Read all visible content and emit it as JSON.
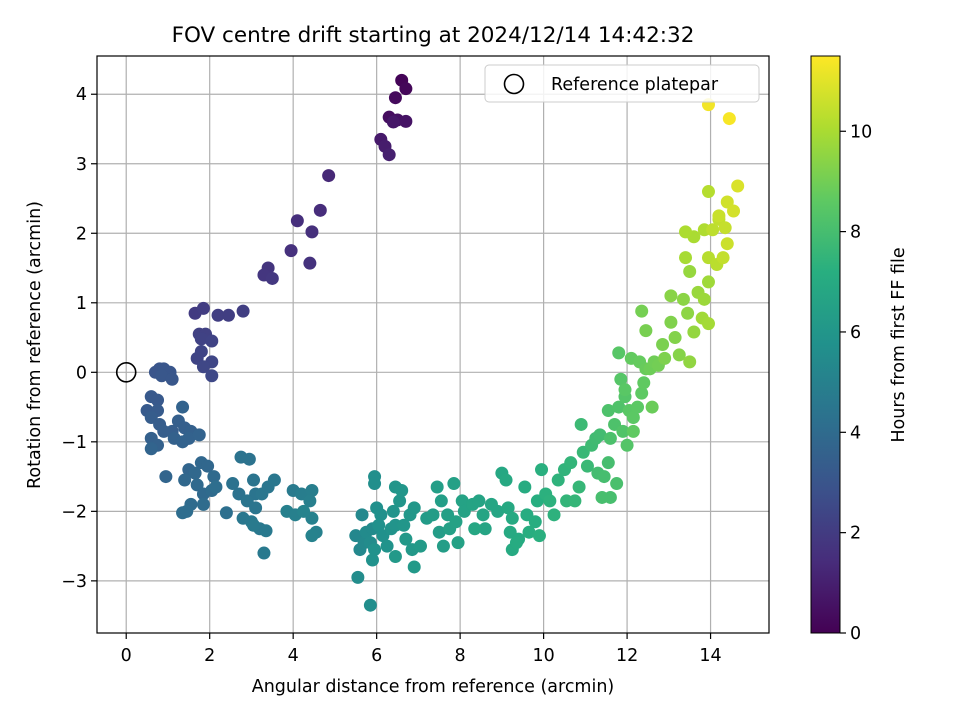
{
  "chart_data": {
    "type": "scatter",
    "title": "FOV centre drift starting at 2024/12/14 14:42:32",
    "xlabel": "Angular distance from reference (arcmin)",
    "ylabel": "Rotation from reference (arcmin)",
    "xlim": [
      -0.7,
      15.4
    ],
    "ylim": [
      -3.75,
      4.55
    ],
    "xticks": [
      0,
      2,
      4,
      6,
      8,
      10,
      12,
      14
    ],
    "yticks": [
      -3,
      -2,
      -1,
      0,
      1,
      2,
      3,
      4
    ],
    "grid": true,
    "legend": {
      "position": "top-right",
      "entries": [
        "Reference platepar"
      ]
    },
    "reference_point": {
      "x": 0,
      "y": 0,
      "label": "Reference platepar"
    },
    "colorbar": {
      "label": "Hours from first FF file",
      "range": [
        0,
        11.5
      ],
      "ticks": [
        0,
        2,
        4,
        6,
        8,
        10
      ],
      "colormap": "viridis"
    },
    "points": [
      [
        6.6,
        4.2,
        0.1
      ],
      [
        6.7,
        4.08,
        0.2
      ],
      [
        6.45,
        3.95,
        0.3
      ],
      [
        6.3,
        3.67,
        0.4
      ],
      [
        6.5,
        3.63,
        0.5
      ],
      [
        6.7,
        3.61,
        0.6
      ],
      [
        6.4,
        3.6,
        0.7
      ],
      [
        6.1,
        3.35,
        0.8
      ],
      [
        6.2,
        3.25,
        0.9
      ],
      [
        6.3,
        3.13,
        1.0
      ],
      [
        4.85,
        2.83,
        1.3
      ],
      [
        4.1,
        2.18,
        1.5
      ],
      [
        4.65,
        2.33,
        1.45
      ],
      [
        4.45,
        2.02,
        1.55
      ],
      [
        3.95,
        1.75,
        1.6
      ],
      [
        4.4,
        1.57,
        1.65
      ],
      [
        3.4,
        1.5,
        1.75
      ],
      [
        3.3,
        1.4,
        1.8
      ],
      [
        3.5,
        1.35,
        1.85
      ],
      [
        1.65,
        0.85,
        2.0
      ],
      [
        1.85,
        0.92,
        2.05
      ],
      [
        2.2,
        0.82,
        2.1
      ],
      [
        2.45,
        0.82,
        2.1
      ],
      [
        2.8,
        0.88,
        2.1
      ],
      [
        1.75,
        0.55,
        2.2
      ],
      [
        1.9,
        0.55,
        2.2
      ],
      [
        1.8,
        0.48,
        2.25
      ],
      [
        2.05,
        0.45,
        2.3
      ],
      [
        1.8,
        0.3,
        2.35
      ],
      [
        1.7,
        0.2,
        2.35
      ],
      [
        2.05,
        0.15,
        2.4
      ],
      [
        1.85,
        0.08,
        2.45
      ],
      [
        2.05,
        -0.05,
        2.5
      ],
      [
        0.8,
        0.05,
        3.0
      ],
      [
        0.7,
        0.0,
        3.0
      ],
      [
        0.9,
        0.05,
        3.05
      ],
      [
        1.05,
        0.0,
        3.05
      ],
      [
        0.85,
        -0.05,
        3.1
      ],
      [
        1.1,
        -0.1,
        3.1
      ],
      [
        0.6,
        -0.35,
        3.2
      ],
      [
        0.75,
        -0.4,
        3.2
      ],
      [
        0.5,
        -0.55,
        3.25
      ],
      [
        0.75,
        -0.55,
        3.3
      ],
      [
        0.6,
        -0.65,
        3.35
      ],
      [
        0.8,
        -0.75,
        3.35
      ],
      [
        0.9,
        -0.85,
        3.4
      ],
      [
        1.1,
        -0.85,
        3.4
      ],
      [
        1.25,
        -0.7,
        3.45
      ],
      [
        1.4,
        -0.8,
        3.45
      ],
      [
        1.55,
        -0.85,
        3.5
      ],
      [
        0.6,
        -0.95,
        3.5
      ],
      [
        0.75,
        -1.05,
        3.55
      ],
      [
        1.15,
        -0.95,
        3.55
      ],
      [
        1.35,
        -1.0,
        3.6
      ],
      [
        1.5,
        -0.95,
        3.6
      ],
      [
        1.75,
        -0.9,
        3.65
      ],
      [
        1.35,
        -0.5,
        3.65
      ],
      [
        0.6,
        -1.1,
        3.7
      ],
      [
        0.95,
        -1.5,
        3.75
      ],
      [
        1.5,
        -1.4,
        3.75
      ],
      [
        1.8,
        -1.3,
        3.8
      ],
      [
        1.95,
        -1.35,
        3.8
      ],
      [
        1.65,
        -1.45,
        3.85
      ],
      [
        1.4,
        -1.55,
        3.85
      ],
      [
        1.7,
        -1.62,
        3.9
      ],
      [
        1.85,
        -1.75,
        3.9
      ],
      [
        2.1,
        -1.5,
        3.95
      ],
      [
        2.05,
        -1.7,
        4.0
      ],
      [
        1.55,
        -1.9,
        4.0
      ],
      [
        1.85,
        -1.9,
        4.05
      ],
      [
        1.35,
        -2.02,
        4.1
      ],
      [
        1.45,
        -2.0,
        4.1
      ],
      [
        2.15,
        -1.65,
        4.15
      ],
      [
        2.4,
        -2.02,
        4.2
      ],
      [
        2.55,
        -1.6,
        4.3
      ],
      [
        2.7,
        -1.75,
        4.3
      ],
      [
        2.75,
        -1.22,
        4.35
      ],
      [
        2.95,
        -1.25,
        4.35
      ],
      [
        3.05,
        -1.55,
        4.4
      ],
      [
        3.1,
        -1.75,
        4.4
      ],
      [
        2.9,
        -1.85,
        4.45
      ],
      [
        3.1,
        -1.95,
        4.45
      ],
      [
        3.25,
        -1.75,
        4.5
      ],
      [
        3.4,
        -1.65,
        4.5
      ],
      [
        3.55,
        -1.55,
        4.55
      ],
      [
        2.8,
        -2.1,
        4.55
      ],
      [
        3.0,
        -2.15,
        4.6
      ],
      [
        3.2,
        -2.25,
        4.6
      ],
      [
        3.35,
        -2.28,
        4.65
      ],
      [
        3.3,
        -2.6,
        4.65
      ],
      [
        3.05,
        -2.2,
        4.7
      ],
      [
        4.0,
        -1.7,
        4.7
      ],
      [
        4.2,
        -1.75,
        4.8
      ],
      [
        4.45,
        -1.7,
        4.85
      ],
      [
        4.4,
        -1.85,
        4.9
      ],
      [
        3.85,
        -2.0,
        4.95
      ],
      [
        4.05,
        -2.05,
        4.95
      ],
      [
        4.45,
        -2.1,
        5.0
      ],
      [
        4.55,
        -2.3,
        5.0
      ],
      [
        4.45,
        -2.35,
        5.05
      ],
      [
        4.25,
        -2.0,
        5.1
      ],
      [
        5.5,
        -2.35,
        5.3
      ],
      [
        5.65,
        -2.05,
        5.35
      ],
      [
        5.6,
        -2.55,
        5.35
      ],
      [
        5.7,
        -2.45,
        5.4
      ],
      [
        5.75,
        -2.3,
        5.45
      ],
      [
        5.9,
        -2.25,
        5.45
      ],
      [
        5.85,
        -2.45,
        5.5
      ],
      [
        5.55,
        -2.95,
        5.55
      ],
      [
        5.85,
        -3.35,
        5.6
      ],
      [
        5.95,
        -1.5,
        5.65
      ],
      [
        5.95,
        -1.6,
        5.65
      ],
      [
        6.0,
        -1.95,
        5.7
      ],
      [
        6.1,
        -2.05,
        5.7
      ],
      [
        6.05,
        -2.2,
        5.75
      ],
      [
        6.15,
        -2.35,
        5.75
      ],
      [
        5.95,
        -2.55,
        5.8
      ],
      [
        5.9,
        -2.7,
        5.8
      ],
      [
        6.25,
        -2.5,
        5.85
      ],
      [
        6.35,
        -2.25,
        5.85
      ],
      [
        6.45,
        -2.2,
        5.9
      ],
      [
        6.4,
        -2.0,
        5.9
      ],
      [
        6.55,
        -1.85,
        5.95
      ],
      [
        6.45,
        -1.65,
        5.95
      ],
      [
        6.6,
        -1.7,
        6.0
      ],
      [
        6.65,
        -2.2,
        6.0
      ],
      [
        6.8,
        -2.05,
        6.05
      ],
      [
        6.9,
        -1.95,
        6.05
      ],
      [
        6.7,
        -2.4,
        6.1
      ],
      [
        6.85,
        -2.55,
        6.1
      ],
      [
        6.9,
        -2.8,
        6.15
      ],
      [
        6.45,
        -2.65,
        6.15
      ],
      [
        7.05,
        -2.5,
        6.2
      ],
      [
        7.2,
        -2.1,
        6.25
      ],
      [
        7.35,
        -2.05,
        6.3
      ],
      [
        7.5,
        -2.3,
        6.3
      ],
      [
        7.6,
        -2.5,
        6.35
      ],
      [
        7.55,
        -1.85,
        6.4
      ],
      [
        7.45,
        -1.65,
        6.4
      ],
      [
        7.7,
        -2.05,
        6.45
      ],
      [
        7.85,
        -1.6,
        6.5
      ],
      [
        7.75,
        -2.25,
        6.5
      ],
      [
        7.95,
        -2.45,
        6.55
      ],
      [
        7.9,
        -2.15,
        6.55
      ],
      [
        8.05,
        -1.85,
        6.6
      ],
      [
        8.1,
        -2.0,
        6.6
      ],
      [
        8.3,
        -1.9,
        6.65
      ],
      [
        8.45,
        -1.85,
        6.65
      ],
      [
        8.55,
        -2.05,
        6.7
      ],
      [
        8.6,
        -2.25,
        6.7
      ],
      [
        8.75,
        -1.9,
        6.75
      ],
      [
        8.9,
        -2.0,
        6.75
      ],
      [
        8.35,
        -2.25,
        6.8
      ],
      [
        9.0,
        -1.45,
        6.85
      ],
      [
        9.1,
        -1.55,
        6.9
      ],
      [
        9.15,
        -1.95,
        6.9
      ],
      [
        9.25,
        -2.1,
        6.95
      ],
      [
        9.2,
        -2.3,
        6.95
      ],
      [
        9.4,
        -2.4,
        7.0
      ],
      [
        9.25,
        -2.55,
        7.0
      ],
      [
        9.35,
        -2.45,
        7.05
      ],
      [
        9.55,
        -1.65,
        7.05
      ],
      [
        9.6,
        -2.05,
        7.1
      ],
      [
        9.65,
        -2.3,
        7.15
      ],
      [
        9.8,
        -2.15,
        7.15
      ],
      [
        9.85,
        -1.85,
        7.2
      ],
      [
        9.9,
        -2.35,
        7.25
      ],
      [
        9.95,
        -1.4,
        7.25
      ],
      [
        10.05,
        -1.75,
        7.3
      ],
      [
        10.15,
        -1.85,
        7.35
      ],
      [
        10.25,
        -2.05,
        7.35
      ],
      [
        10.35,
        -1.55,
        7.4
      ],
      [
        10.5,
        -1.4,
        7.45
      ],
      [
        10.65,
        -1.3,
        7.5
      ],
      [
        10.55,
        -1.85,
        7.5
      ],
      [
        10.75,
        -1.85,
        7.55
      ],
      [
        10.85,
        -1.65,
        7.6
      ],
      [
        10.95,
        -1.15,
        7.65
      ],
      [
        11.05,
        -1.35,
        7.7
      ],
      [
        10.9,
        -0.75,
        7.75
      ],
      [
        11.15,
        -1.05,
        7.8
      ],
      [
        11.25,
        -0.95,
        7.85
      ],
      [
        11.35,
        -0.9,
        7.9
      ],
      [
        11.3,
        -1.45,
        7.95
      ],
      [
        11.45,
        -1.5,
        8.0
      ],
      [
        11.55,
        -1.3,
        8.0
      ],
      [
        11.4,
        -1.8,
        8.05
      ],
      [
        11.6,
        -1.8,
        8.05
      ],
      [
        11.75,
        -1.6,
        8.1
      ],
      [
        11.6,
        -0.95,
        8.15
      ],
      [
        11.55,
        -0.55,
        8.2
      ],
      [
        11.7,
        -0.75,
        8.2
      ],
      [
        11.8,
        -0.5,
        8.25
      ],
      [
        11.9,
        -0.85,
        8.3
      ],
      [
        12.0,
        -1.05,
        8.35
      ],
      [
        11.95,
        -0.35,
        8.35
      ],
      [
        11.85,
        -0.1,
        8.4
      ],
      [
        11.8,
        0.28,
        8.45
      ],
      [
        11.95,
        -0.25,
        8.5
      ],
      [
        12.05,
        -0.55,
        8.5
      ],
      [
        12.15,
        -0.65,
        8.55
      ],
      [
        12.25,
        -0.5,
        8.55
      ],
      [
        12.35,
        -0.3,
        8.6
      ],
      [
        12.4,
        -0.15,
        8.65
      ],
      [
        12.15,
        -0.85,
        8.65
      ],
      [
        12.1,
        0.2,
        8.7
      ],
      [
        12.3,
        0.15,
        8.75
      ],
      [
        12.45,
        0.05,
        8.8
      ],
      [
        12.6,
        -0.5,
        8.85
      ],
      [
        12.55,
        0.05,
        8.9
      ],
      [
        12.65,
        0.15,
        8.95
      ],
      [
        12.75,
        0.1,
        9.0
      ],
      [
        12.35,
        0.88,
        9.05
      ],
      [
        12.45,
        0.6,
        9.1
      ],
      [
        12.85,
        0.4,
        9.15
      ],
      [
        12.9,
        0.2,
        9.2
      ],
      [
        13.05,
        0.72,
        9.25
      ],
      [
        13.15,
        0.5,
        9.3
      ],
      [
        13.25,
        0.25,
        9.35
      ],
      [
        13.05,
        1.1,
        9.4
      ],
      [
        13.35,
        1.05,
        9.45
      ],
      [
        13.45,
        0.85,
        9.5
      ],
      [
        13.5,
        0.15,
        9.55
      ],
      [
        13.6,
        0.58,
        9.6
      ],
      [
        13.5,
        1.45,
        9.65
      ],
      [
        13.7,
        1.15,
        9.7
      ],
      [
        13.85,
        1.05,
        9.75
      ],
      [
        13.95,
        1.3,
        9.8
      ],
      [
        13.8,
        0.78,
        9.85
      ],
      [
        13.95,
        0.7,
        9.9
      ],
      [
        13.4,
        1.65,
        9.95
      ],
      [
        13.6,
        1.95,
        10.0
      ],
      [
        13.4,
        2.02,
        10.05
      ],
      [
        13.85,
        2.05,
        10.1
      ],
      [
        13.95,
        2.6,
        10.2
      ],
      [
        13.95,
        1.65,
        10.25
      ],
      [
        14.15,
        1.55,
        10.3
      ],
      [
        14.05,
        2.05,
        10.35
      ],
      [
        14.2,
        2.2,
        10.4
      ],
      [
        14.3,
        1.65,
        10.45
      ],
      [
        14.35,
        2.08,
        10.5
      ],
      [
        14.2,
        2.25,
        10.55
      ],
      [
        14.4,
        1.85,
        10.6
      ],
      [
        14.4,
        2.45,
        10.7
      ],
      [
        14.55,
        2.32,
        10.75
      ],
      [
        14.65,
        2.68,
        10.85
      ],
      [
        13.95,
        3.85,
        11.3
      ],
      [
        14.45,
        3.65,
        11.4
      ]
    ]
  }
}
